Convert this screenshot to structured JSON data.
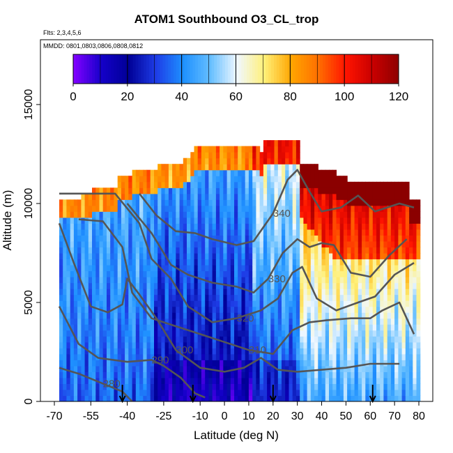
{
  "chart_data": {
    "type": "heatmap",
    "title": "ATOM1 Southbound O3_CL_trop",
    "subtitle_flights": "Flts: 2,3,4,5,6",
    "subtitle_dates": "MMDD: 0801,0803,0806,0808,0812",
    "xlabel": "Latitude (deg N)",
    "ylabel": "Altitude (m)",
    "xlim": [
      -70,
      80
    ],
    "ylim": [
      0,
      17500
    ],
    "x_ticks": [
      -70,
      -55,
      -40,
      -25,
      -10,
      0,
      10,
      20,
      30,
      40,
      50,
      60,
      70,
      80
    ],
    "y_ticks": [
      0,
      5000,
      10000,
      15000
    ],
    "colorbar": {
      "min": 0,
      "max": 120,
      "ticks": [
        0,
        20,
        40,
        60,
        80,
        100,
        120
      ],
      "colors": [
        "#7f00ff",
        "#00008b",
        "#0000cd",
        "#1e90ff",
        "#00bfff",
        "#ffffff",
        "#ffff66",
        "#ffa500",
        "#ff0000",
        "#8b0000"
      ]
    },
    "ozone_ppbv_description": "Ozone mixing ratio colored by value; high (>80) near tropopause 9000-12500 m, low (<20) in tropical lower troposphere",
    "theta_contours": [
      {
        "label": "280",
        "points": [
          [
            -68,
            1700
          ],
          [
            -60,
            1400
          ],
          [
            -50,
            900
          ],
          [
            -42,
            500
          ],
          [
            -38,
            0
          ]
        ]
      },
      {
        "label": "290",
        "points": [
          [
            -68,
            4800
          ],
          [
            -60,
            2900
          ],
          [
            -52,
            2200
          ],
          [
            -40,
            2000
          ],
          [
            -30,
            2100
          ],
          [
            -25,
            1800
          ],
          [
            -18,
            1200
          ],
          [
            -12,
            400
          ],
          [
            -8,
            200
          ]
        ]
      },
      {
        "label": "300",
        "points": [
          [
            -68,
            9000
          ],
          [
            -62,
            7000
          ],
          [
            -55,
            4800
          ],
          [
            -48,
            4500
          ],
          [
            -42,
            4900
          ],
          [
            -40,
            6200
          ],
          [
            -35,
            5400
          ],
          [
            -28,
            4200
          ],
          [
            -20,
            2600
          ],
          [
            -10,
            1700
          ],
          [
            0,
            1500
          ],
          [
            8,
            1700
          ],
          [
            15,
            2200
          ],
          [
            22,
            1600
          ],
          [
            30,
            1500
          ],
          [
            40,
            1600
          ],
          [
            50,
            1700
          ],
          [
            60,
            1900
          ],
          [
            72,
            1900
          ]
        ]
      },
      {
        "label": "310",
        "points": [
          [
            -60,
            9200
          ],
          [
            -50,
            9100
          ],
          [
            -42,
            7800
          ],
          [
            -38,
            5500
          ],
          [
            -30,
            4200
          ],
          [
            -20,
            3800
          ],
          [
            -10,
            3400
          ],
          [
            0,
            3000
          ],
          [
            10,
            2600
          ],
          [
            20,
            2400
          ],
          [
            28,
            3600
          ],
          [
            35,
            4000
          ],
          [
            42,
            4100
          ],
          [
            52,
            4200
          ],
          [
            60,
            4200
          ],
          [
            65,
            4600
          ],
          [
            72,
            5000
          ],
          [
            78,
            3400
          ]
        ]
      },
      {
        "label": "320",
        "points": [
          [
            -68,
            10500
          ],
          [
            -58,
            10500
          ],
          [
            -45,
            10500
          ],
          [
            -35,
            9000
          ],
          [
            -30,
            7200
          ],
          [
            -22,
            6200
          ],
          [
            -15,
            4800
          ],
          [
            -5,
            4000
          ],
          [
            5,
            4200
          ],
          [
            15,
            4600
          ],
          [
            22,
            5200
          ],
          [
            28,
            6500
          ],
          [
            32,
            6800
          ],
          [
            38,
            5200
          ],
          [
            46,
            4600
          ],
          [
            55,
            5000
          ],
          [
            62,
            5300
          ],
          [
            70,
            6400
          ],
          [
            78,
            7000
          ]
        ]
      },
      {
        "label": "330",
        "points": [
          [
            -40,
            10000
          ],
          [
            -30,
            8500
          ],
          [
            -22,
            6900
          ],
          [
            -15,
            6400
          ],
          [
            -5,
            6000
          ],
          [
            5,
            5800
          ],
          [
            12,
            5500
          ],
          [
            18,
            6200
          ],
          [
            24,
            7500
          ],
          [
            30,
            8200
          ],
          [
            35,
            7800
          ],
          [
            40,
            8000
          ],
          [
            45,
            7900
          ],
          [
            52,
            6500
          ],
          [
            60,
            6300
          ],
          [
            68,
            7400
          ],
          [
            75,
            8200
          ]
        ]
      },
      {
        "label": "340",
        "points": [
          [
            -35,
            10500
          ],
          [
            -28,
            9400
          ],
          [
            -20,
            8600
          ],
          [
            -12,
            8500
          ],
          [
            -5,
            8200
          ],
          [
            5,
            7900
          ],
          [
            12,
            8100
          ],
          [
            20,
            9500
          ],
          [
            26,
            11200
          ],
          [
            30,
            11700
          ],
          [
            35,
            10600
          ],
          [
            40,
            9600
          ],
          [
            48,
            9800
          ],
          [
            55,
            10400
          ],
          [
            62,
            9600
          ],
          [
            72,
            10000
          ],
          [
            78,
            9800
          ]
        ]
      }
    ],
    "markers": [
      {
        "label": "flight-arrow",
        "lat": -42
      },
      {
        "label": "flight-arrow",
        "lat": -13
      },
      {
        "label": "flight-arrow",
        "lat": 20
      },
      {
        "label": "flight-arrow",
        "lat": 61
      }
    ]
  }
}
